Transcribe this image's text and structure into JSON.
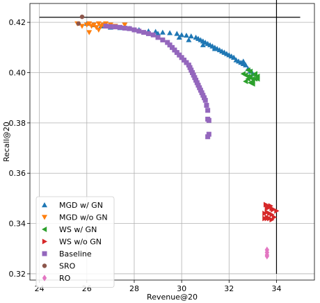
{
  "chart_data": {
    "type": "scatter",
    "xlabel": "Revenue@20",
    "ylabel": "Recall@20",
    "xlim": [
      23.6,
      35.6
    ],
    "ylim": [
      0.3175,
      0.4275
    ],
    "x_ticks": [
      24,
      26,
      28,
      30,
      32,
      34
    ],
    "y_ticks": [
      0.32,
      0.34,
      0.36,
      0.38,
      0.4,
      0.42
    ],
    "x_tick_labels": [
      "24",
      "26",
      "28",
      "30",
      "32",
      "34"
    ],
    "y_tick_labels": [
      "0.32",
      "0.34",
      "0.36",
      "0.38",
      "0.40",
      "0.42"
    ],
    "grid": true,
    "legend_position": "lower-left",
    "reference_lines": [
      {
        "orientation": "horizontal",
        "y": 0.422,
        "x_from": 24,
        "x_to": 35
      },
      {
        "orientation": "vertical",
        "x": 34,
        "y_from": 0.32,
        "y_to": 0.43
      }
    ],
    "series": [
      {
        "name": "MGD w/ GN",
        "marker": "triangle-up",
        "color": "#1f77b4",
        "x": [
          26.0,
          26.3,
          26.6,
          27.0,
          27.4,
          27.8,
          28.2,
          28.6,
          28.9,
          29.2,
          29.5,
          29.8,
          30.0,
          30.2,
          30.4,
          30.6,
          30.7,
          30.8,
          30.9,
          31.0,
          31.1,
          31.2,
          31.3,
          31.4,
          31.5,
          31.6,
          31.7,
          31.8,
          31.9,
          32.0,
          32.1,
          32.2,
          32.3,
          32.4,
          32.5,
          32.6,
          32.7,
          32.8,
          32.9,
          33.0,
          29.0,
          29.9,
          30.3,
          30.9,
          31.4,
          31.8,
          32.2,
          32.6
        ],
        "y": [
          0.4195,
          0.419,
          0.4185,
          0.418,
          0.4178,
          0.4175,
          0.417,
          0.4165,
          0.4163,
          0.416,
          0.4158,
          0.4155,
          0.415,
          0.4148,
          0.4145,
          0.414,
          0.4135,
          0.413,
          0.4125,
          0.412,
          0.4115,
          0.411,
          0.4105,
          0.41,
          0.4095,
          0.409,
          0.4085,
          0.408,
          0.4075,
          0.407,
          0.4065,
          0.406,
          0.405,
          0.4045,
          0.404,
          0.4035,
          0.403,
          0.4015,
          0.4005,
          0.3995,
          0.4155,
          0.414,
          0.413,
          0.411,
          0.4095,
          0.408,
          0.406,
          0.4045
        ]
      },
      {
        "name": "MGD w/o GN",
        "marker": "triangle-down",
        "color": "#ff7f0e",
        "x": [
          25.6,
          25.8,
          26.0,
          26.1,
          26.2,
          26.3,
          26.4,
          26.5,
          26.6,
          26.7,
          26.8,
          27.0,
          27.2,
          27.6,
          26.1,
          26.5
        ],
        "y": [
          0.4195,
          0.4185,
          0.419,
          0.4195,
          0.4185,
          0.419,
          0.418,
          0.4195,
          0.4185,
          0.419,
          0.4195,
          0.419,
          0.4185,
          0.419,
          0.416,
          0.417
        ]
      },
      {
        "name": "WS w/ GN",
        "marker": "triangle-left",
        "color": "#2ca02c",
        "x": [
          32.6,
          32.7,
          32.8,
          32.9,
          33.0,
          33.1,
          33.2,
          33.1,
          32.9,
          32.8,
          32.7,
          32.9,
          33.0,
          33.2,
          32.8,
          32.9,
          33.1,
          33.0
        ],
        "y": [
          0.3995,
          0.399,
          0.3985,
          0.398,
          0.3975,
          0.399,
          0.3985,
          0.3995,
          0.4005,
          0.3975,
          0.3965,
          0.396,
          0.3955,
          0.3975,
          0.401,
          0.3985,
          0.3975,
          0.3965
        ]
      },
      {
        "name": "WS w/o GN",
        "marker": "triangle-right",
        "color": "#d62728",
        "x": [
          33.5,
          33.6,
          33.7,
          33.8,
          33.5,
          33.6,
          33.7,
          33.8,
          33.9,
          33.6,
          33.7,
          33.8,
          33.55,
          33.65,
          33.75,
          34.0,
          33.85,
          33.6
        ],
        "y": [
          0.342,
          0.3425,
          0.342,
          0.3415,
          0.344,
          0.3445,
          0.344,
          0.3435,
          0.3425,
          0.346,
          0.3465,
          0.346,
          0.3475,
          0.347,
          0.347,
          0.345,
          0.3455,
          0.342
        ]
      },
      {
        "name": "Baseline",
        "marker": "square",
        "color": "#9467bd",
        "x": [
          26.8,
          27.0,
          27.2,
          27.4,
          27.6,
          27.8,
          28.0,
          28.2,
          28.4,
          28.6,
          28.8,
          29.0,
          29.2,
          29.4,
          29.5,
          29.6,
          29.7,
          29.8,
          29.9,
          30.0,
          30.1,
          30.2,
          30.3,
          30.35,
          30.4,
          30.45,
          30.5,
          30.55,
          30.6,
          30.65,
          30.7,
          30.75,
          30.8,
          30.85,
          30.9,
          30.95,
          31.0,
          31.05,
          31.1,
          31.1,
          31.15,
          31.15,
          31.1
        ],
        "y": [
          0.4185,
          0.4183,
          0.4182,
          0.418,
          0.4177,
          0.4175,
          0.417,
          0.4165,
          0.416,
          0.4155,
          0.415,
          0.414,
          0.413,
          0.412,
          0.411,
          0.41,
          0.409,
          0.408,
          0.407,
          0.406,
          0.405,
          0.404,
          0.403,
          0.402,
          0.401,
          0.4,
          0.399,
          0.398,
          0.397,
          0.396,
          0.395,
          0.394,
          0.393,
          0.392,
          0.391,
          0.39,
          0.389,
          0.387,
          0.385,
          0.3815,
          0.381,
          0.3755,
          0.3745
        ]
      },
      {
        "name": "SRO",
        "marker": "circle",
        "color": "#8c564b",
        "x": [
          25.8,
          25.65
        ],
        "y": [
          0.4222,
          0.4195
        ]
      },
      {
        "name": "RO",
        "marker": "diamond",
        "color": "#e377c2",
        "x": [
          33.6,
          33.6,
          33.6,
          33.6
        ],
        "y": [
          0.3295,
          0.3285,
          0.3275,
          0.327
        ]
      }
    ]
  }
}
